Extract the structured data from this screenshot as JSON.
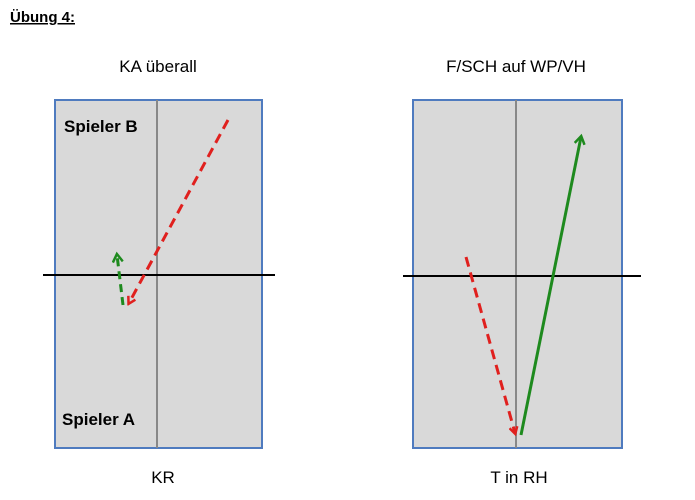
{
  "header": {
    "title": "Übung 4:"
  },
  "diagrams": [
    {
      "title": "KA überall",
      "labels": [
        "Spieler B",
        "Spieler A"
      ],
      "caption": "KR"
    },
    {
      "title": "F/SCH auf WP/VH",
      "caption": "T in RH"
    }
  ]
}
